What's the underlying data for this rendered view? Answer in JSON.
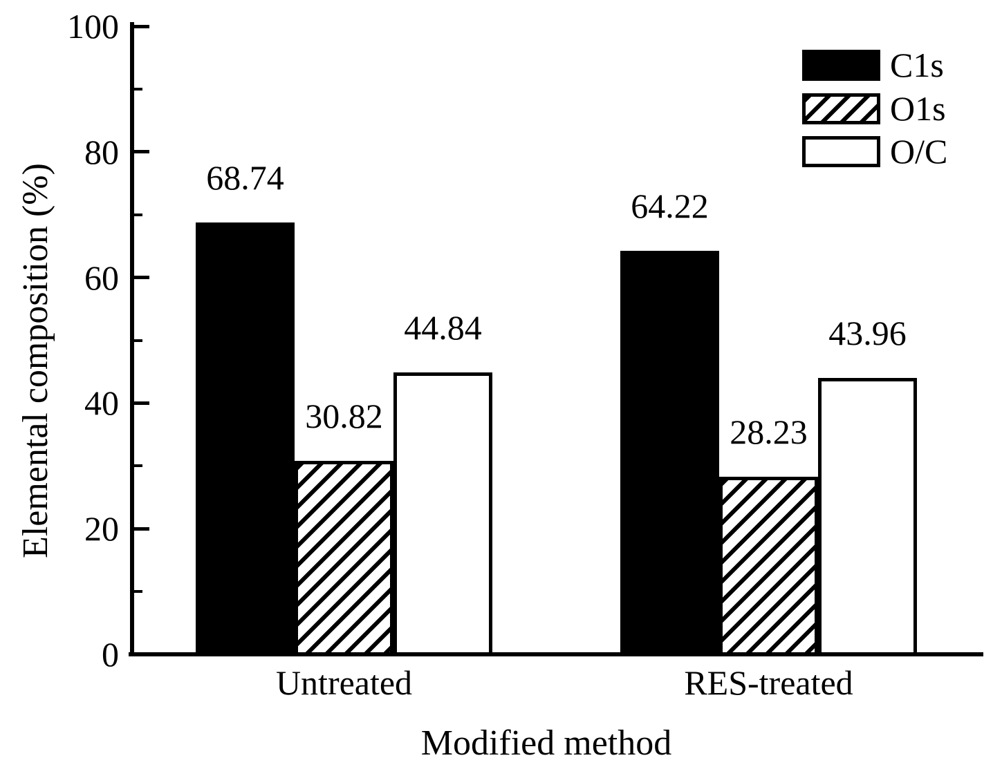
{
  "chart_data": {
    "type": "bar",
    "title": "",
    "xlabel": "Modified method",
    "ylabel": "Elemental composition (%)",
    "ylim": [
      0,
      100
    ],
    "ytick_major": [
      0,
      20,
      40,
      60,
      80,
      100
    ],
    "ytick_minor": [
      10,
      30,
      50,
      70,
      90
    ],
    "grid": false,
    "legend_position": "top-right",
    "value_labels": true,
    "categories": [
      "Untreated",
      "RES-treated"
    ],
    "series": [
      {
        "name": "C1s",
        "fill": "solid-black",
        "values": [
          68.74,
          64.22
        ]
      },
      {
        "name": "O1s",
        "fill": "diagonal-hatch",
        "values": [
          30.82,
          28.23
        ]
      },
      {
        "name": "O/C",
        "fill": "white",
        "values": [
          44.84,
          43.96
        ]
      }
    ],
    "value_label_texts": [
      [
        "68.74",
        "64.22"
      ],
      [
        "30.82",
        "28.23"
      ],
      [
        "44.84",
        "43.96"
      ]
    ]
  },
  "colors": {
    "foreground": "#000000",
    "background": "#ffffff"
  }
}
